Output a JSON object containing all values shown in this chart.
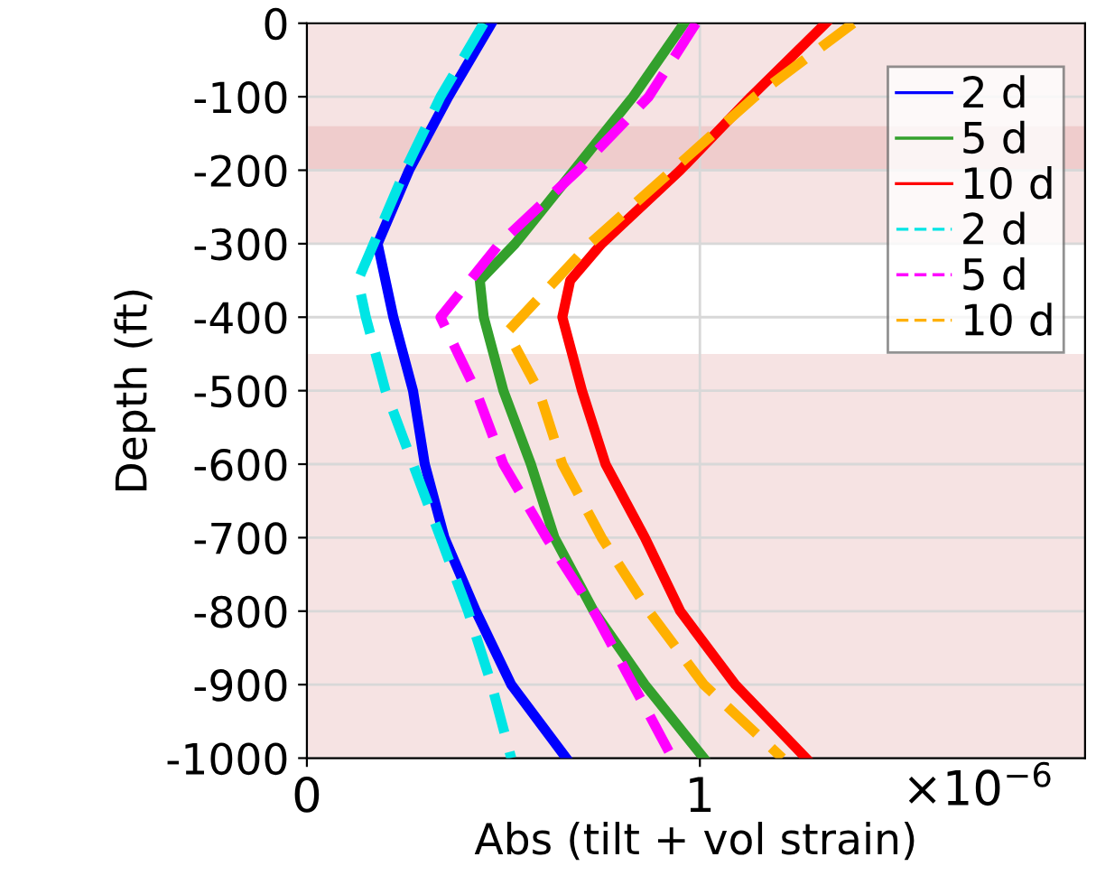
{
  "chart_data": {
    "type": "line",
    "xlabel": "Abs (tilt + vol strain)",
    "ylabel": "Depth (ft)",
    "annotations": [
      "×10$^{−6}$"
    ],
    "xlim": [
      0,
      1.98
    ],
    "xticks": [
      0,
      1
    ],
    "ylim": [
      -1000,
      0
    ],
    "yticks": [
      -1000,
      -900,
      -800,
      -700,
      -600,
      -500,
      -400,
      -300,
      -200,
      -100,
      0
    ],
    "grid": true,
    "legend": "top right",
    "bands": [
      {
        "axis": "y",
        "from": -300,
        "to": 0,
        "color": "#f6e3e3"
      },
      {
        "axis": "y",
        "from": -200,
        "to": -140,
        "color": "#efcccc"
      },
      {
        "axis": "y",
        "from": -1000,
        "to": -450,
        "color": "#f6e3e3"
      }
    ],
    "series": [
      {
        "name": "2 d",
        "color": "#0000ff",
        "line_style": "solid",
        "x": [
          0.47,
          0.36,
          0.26,
          0.18,
          0.22,
          0.27,
          0.3,
          0.35,
          0.43,
          0.52,
          0.66
        ],
        "values": [
          0,
          -100,
          -200,
          -300,
          -400,
          -500,
          -600,
          -700,
          -800,
          -900,
          -1000
        ]
      },
      {
        "name": "5 d",
        "color": "#33a02c",
        "line_style": "solid",
        "x": [
          0.96,
          0.83,
          0.68,
          0.53,
          0.44,
          0.45,
          0.5,
          0.57,
          0.63,
          0.73,
          0.86,
          1.01
        ],
        "values": [
          0,
          -100,
          -200,
          -300,
          -350,
          -400,
          -500,
          -600,
          -700,
          -800,
          -900,
          -1000
        ]
      },
      {
        "name": "10 d",
        "color": "#ff0000",
        "line_style": "solid",
        "x": [
          1.32,
          1.13,
          0.95,
          0.75,
          0.67,
          0.65,
          0.7,
          0.76,
          0.86,
          0.95,
          1.09,
          1.27
        ],
        "values": [
          0,
          -100,
          -200,
          -300,
          -350,
          -400,
          -500,
          -600,
          -700,
          -800,
          -900,
          -1000
        ]
      },
      {
        "name": "2 d",
        "color": "#00e5e5",
        "line_style": "dashed",
        "x": [
          0.45,
          0.34,
          0.25,
          0.17,
          0.13,
          0.15,
          0.2,
          0.27,
          0.34,
          0.41,
          0.47,
          0.52
        ],
        "values": [
          0,
          -100,
          -200,
          -300,
          -350,
          -400,
          -500,
          -600,
          -700,
          -800,
          -900,
          -1000
        ]
      },
      {
        "name": "5 d",
        "color": "#ff00ff",
        "line_style": "dashed",
        "x": [
          0.99,
          0.87,
          0.69,
          0.49,
          0.34,
          0.43,
          0.5,
          0.61,
          0.73,
          0.83,
          0.93
        ],
        "values": [
          0,
          -100,
          -200,
          -300,
          -400,
          -500,
          -600,
          -700,
          -800,
          -900,
          -1000
        ]
      },
      {
        "name": "10 d",
        "color": "#ffb000",
        "line_style": "dashed",
        "x": [
          1.39,
          1.14,
          0.93,
          0.72,
          0.51,
          0.59,
          0.65,
          0.75,
          0.87,
          1.01,
          1.21
        ],
        "values": [
          0,
          -100,
          -200,
          -300,
          -420,
          -500,
          -600,
          -700,
          -800,
          -900,
          -1000
        ]
      }
    ]
  }
}
